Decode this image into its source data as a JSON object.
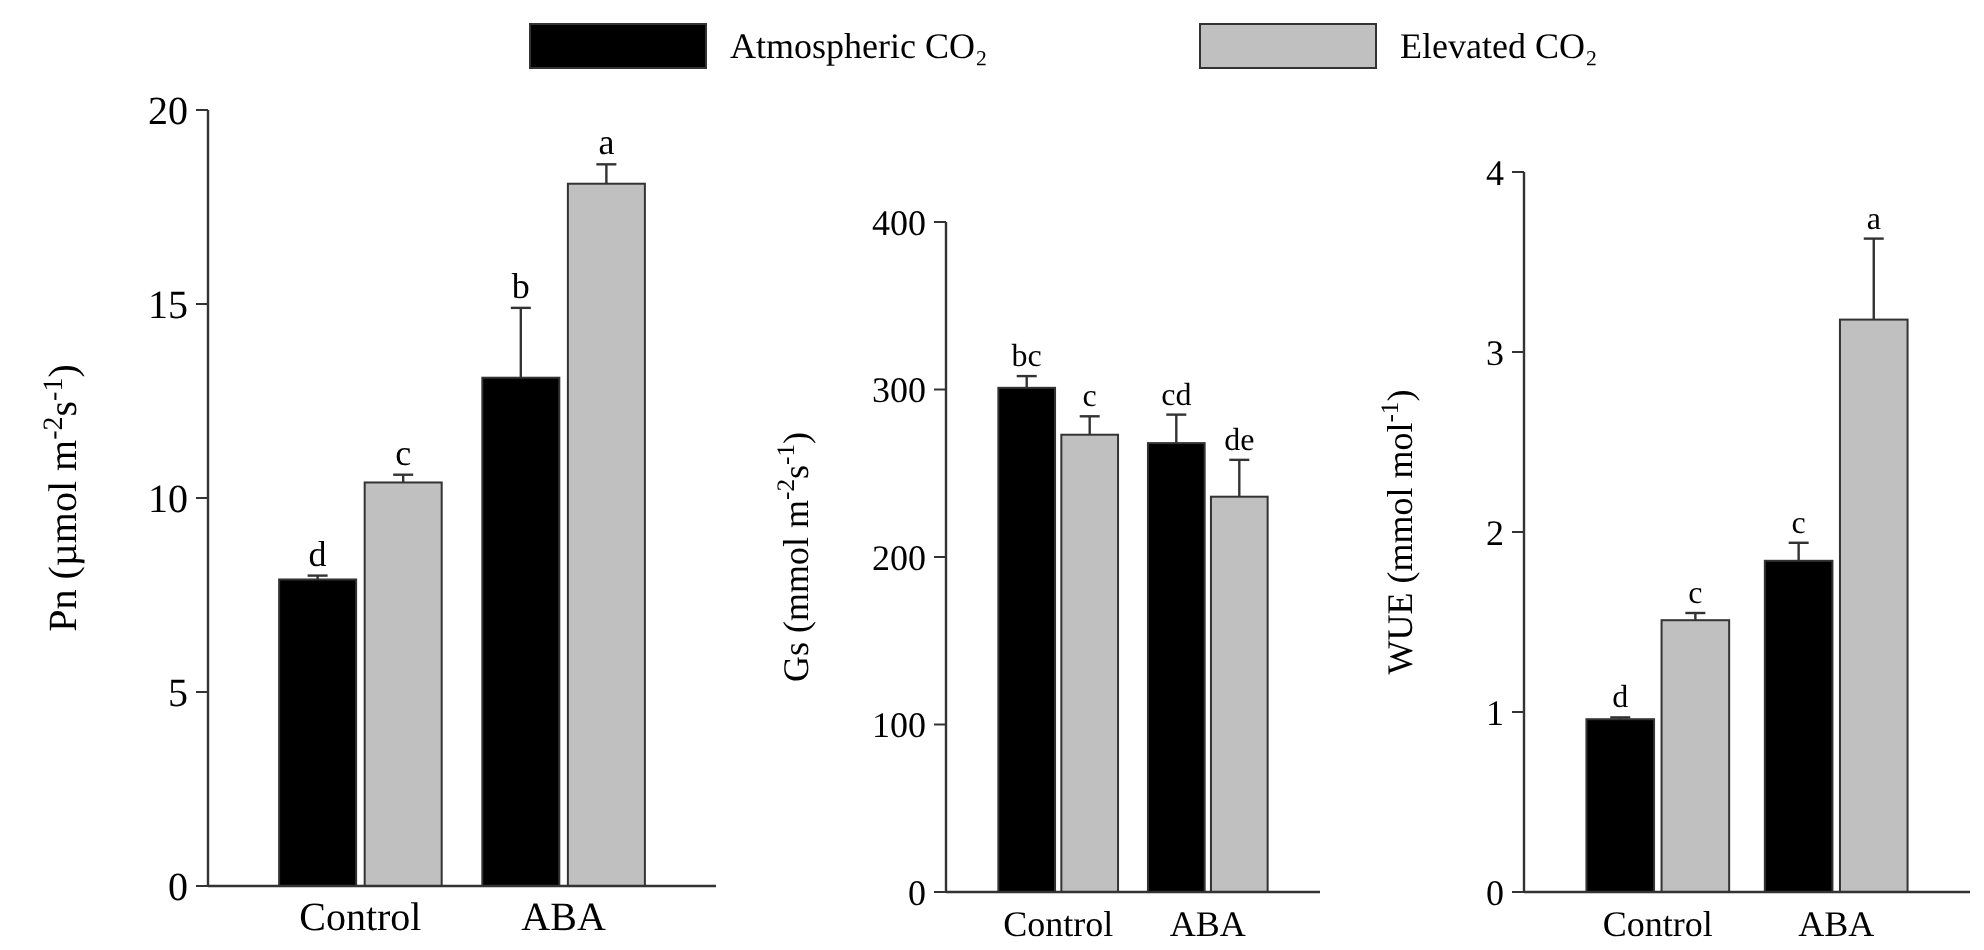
{
  "chart_data": [
    {
      "type": "bar",
      "ylabel": "Pn (µmol m$^{-2}$s$^{-1}$)",
      "categories": [
        "Control",
        "ABA"
      ],
      "ylim": [
        0,
        20
      ],
      "yticks": [
        0,
        5,
        10,
        15,
        20
      ],
      "legend": "top",
      "grid": false,
      "series": [
        {
          "name": "Atmospheric CO₂",
          "color": "#000000",
          "values": [
            7.9,
            13.1
          ],
          "errors": [
            [
              7.9,
              8.0
            ],
            [
              13.1,
              14.9
            ]
          ]
        },
        {
          "name": "Elevated CO₂",
          "color": "#c0c0c0",
          "values": [
            10.4,
            18.1
          ],
          "errors": [
            [
              10.4,
              10.6
            ],
            [
              18.1,
              18.6
            ]
          ]
        }
      ],
      "annotations": [
        {
          "text": "d",
          "x": "Control",
          "y": 7.9
        },
        {
          "text": "c",
          "x": "Control",
          "y": 10.4
        },
        {
          "text": "b",
          "x": "ABA",
          "y": 13.1
        },
        {
          "text": "a",
          "x": "ABA",
          "y": 18.1
        }
      ]
    },
    {
      "type": "bar",
      "ylabel": "Gs (mmol  m$^{-2}$s$^{-1}$)",
      "categories": [
        "Control",
        "ABA"
      ],
      "ylim": [
        0,
        400
      ],
      "yticks": [
        0,
        100,
        200,
        300,
        400
      ],
      "grid": false,
      "series": [
        {
          "color": "#000000",
          "values": [
            301,
            268
          ],
          "errors": [
            [
              301,
              308
            ],
            [
              268,
              285
            ]
          ]
        },
        {
          "color": "#c0c0c0",
          "values": [
            273,
            236
          ],
          "errors": [
            [
              273,
              284
            ],
            [
              236,
              258
            ]
          ]
        }
      ],
      "annotations": [
        {
          "text": "bc",
          "x": "Control",
          "y": 301
        },
        {
          "text": "c",
          "x": "Control",
          "y": 273
        },
        {
          "text": "cd",
          "x": "ABA",
          "y": 268
        },
        {
          "text": "de",
          "x": "ABA",
          "y": 236
        }
      ]
    },
    {
      "type": "bar",
      "ylabel": "WUE (mmol mol$^{-1}$)",
      "categories": [
        "Control",
        "ABA"
      ],
      "ylim": [
        0,
        4
      ],
      "yticks": [
        0,
        1,
        2,
        3,
        4
      ],
      "grid": false,
      "series": [
        {
          "color": "#000000",
          "values": [
            0.96,
            1.84
          ],
          "errors": [
            [
              0.96,
              0.97
            ],
            [
              1.84,
              1.94
            ]
          ]
        },
        {
          "color": "#c0c0c0",
          "values": [
            1.51,
            3.18
          ],
          "errors": [
            [
              1.51,
              1.55
            ],
            [
              3.18,
              3.63
            ]
          ]
        }
      ],
      "annotations": [
        {
          "text": "d",
          "x": "Control",
          "y": 0.96
        },
        {
          "text": "c",
          "x": "Control",
          "y": 1.51
        },
        {
          "text": "c",
          "x": "ABA",
          "y": 1.84
        },
        {
          "text": "a",
          "x": "ABA",
          "y": 3.18
        }
      ]
    }
  ]
}
